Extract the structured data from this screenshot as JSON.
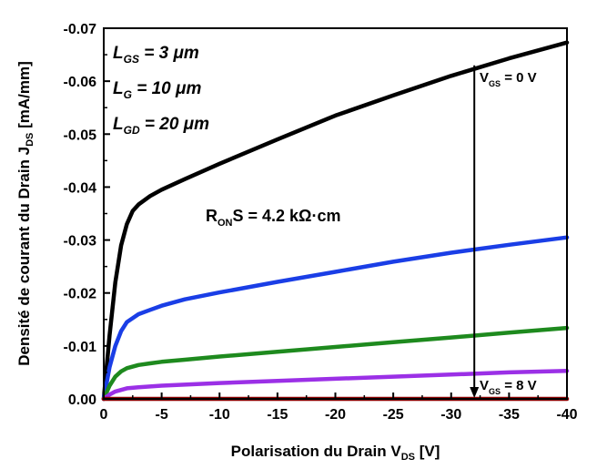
{
  "chart_data": {
    "type": "line",
    "xlabel": "Polarisation du Drain V",
    "xlabel_sub": "DS",
    "xlabel_unit": " [V]",
    "ylabel": "Densité de courant du Drain J",
    "ylabel_sub": "DS",
    "ylabel_unit": " [mA/mm]",
    "xlim": [
      0,
      -40
    ],
    "ylim": [
      0.0,
      -0.07
    ],
    "xticks": [
      0,
      -5,
      -10,
      -15,
      -20,
      -25,
      -30,
      -35,
      -40
    ],
    "yticks": [
      0.0,
      -0.01,
      -0.02,
      -0.03,
      -0.04,
      -0.05,
      -0.06,
      -0.07
    ],
    "xtick_labels": [
      "0",
      "-5",
      "-10",
      "-15",
      "-20",
      "-25",
      "-30",
      "-35",
      "-40"
    ],
    "ytick_labels": [
      "0.00",
      "-0.01",
      "-0.02",
      "-0.03",
      "-0.04",
      "-0.05",
      "-0.06",
      "-0.07"
    ],
    "series": [
      {
        "color": "#000000",
        "x": [
          0,
          -0.5,
          -1,
          -1.5,
          -2,
          -2.5,
          -3,
          -4,
          -5,
          -7,
          -10,
          -15,
          -20,
          -25,
          -30,
          -35,
          -40
        ],
        "y": [
          0,
          -0.012,
          -0.022,
          -0.029,
          -0.033,
          -0.0355,
          -0.0367,
          -0.0383,
          -0.0395,
          -0.0415,
          -0.0444,
          -0.049,
          -0.0535,
          -0.0573,
          -0.061,
          -0.0643,
          -0.0673
        ]
      },
      {
        "color": "#1a3ee6",
        "x": [
          0,
          -0.5,
          -1,
          -1.5,
          -2,
          -3,
          -4,
          -5,
          -7,
          -10,
          -15,
          -20,
          -25,
          -30,
          -35,
          -40
        ],
        "y": [
          0,
          -0.006,
          -0.01,
          -0.0128,
          -0.0145,
          -0.016,
          -0.0168,
          -0.0176,
          -0.0188,
          -0.0201,
          -0.0221,
          -0.024,
          -0.0259,
          -0.0276,
          -0.0291,
          -0.0305
        ]
      },
      {
        "color": "#1e8a1e",
        "x": [
          0,
          -0.5,
          -1,
          -1.5,
          -2,
          -3,
          -4,
          -5,
          -7,
          -10,
          -15,
          -20,
          -25,
          -30,
          -35,
          -40
        ],
        "y": [
          0,
          -0.0025,
          -0.0042,
          -0.0052,
          -0.0058,
          -0.0064,
          -0.0067,
          -0.007,
          -0.0074,
          -0.008,
          -0.0089,
          -0.0098,
          -0.0107,
          -0.0116,
          -0.0125,
          -0.0134
        ]
      },
      {
        "color": "#9b30e6",
        "x": [
          0,
          -0.5,
          -1,
          -2,
          -3,
          -5,
          -10,
          -15,
          -20,
          -25,
          -30,
          -35,
          -40
        ],
        "y": [
          0,
          -0.0008,
          -0.0014,
          -0.002,
          -0.0022,
          -0.0025,
          -0.003,
          -0.0034,
          -0.0038,
          -0.0042,
          -0.0046,
          -0.005,
          -0.0053
        ]
      },
      {
        "color": "#8b0000",
        "x": [
          0,
          -40
        ],
        "y": [
          0,
          0
        ]
      }
    ],
    "annotations": {
      "params": [
        {
          "main": "L",
          "sub": "GS",
          "rest": " = 3 μm"
        },
        {
          "main": "L",
          "sub": "G",
          "rest": " = 10 μm"
        },
        {
          "main": "L",
          "sub": "GD",
          "rest": " = 20 μm"
        }
      ],
      "ron": {
        "main": "R",
        "sub": "ON",
        "rest": "S = 4.2 kΩ·cm"
      },
      "vgs_top": {
        "main": "V",
        "sub": "GS",
        "rest": " = 0 V"
      },
      "vgs_bottom": {
        "main": "V",
        "sub": "GS",
        "rest": " = 8 V"
      },
      "arrow_x": -32,
      "arrow_from": -0.063,
      "arrow_to": -0.0
    }
  }
}
